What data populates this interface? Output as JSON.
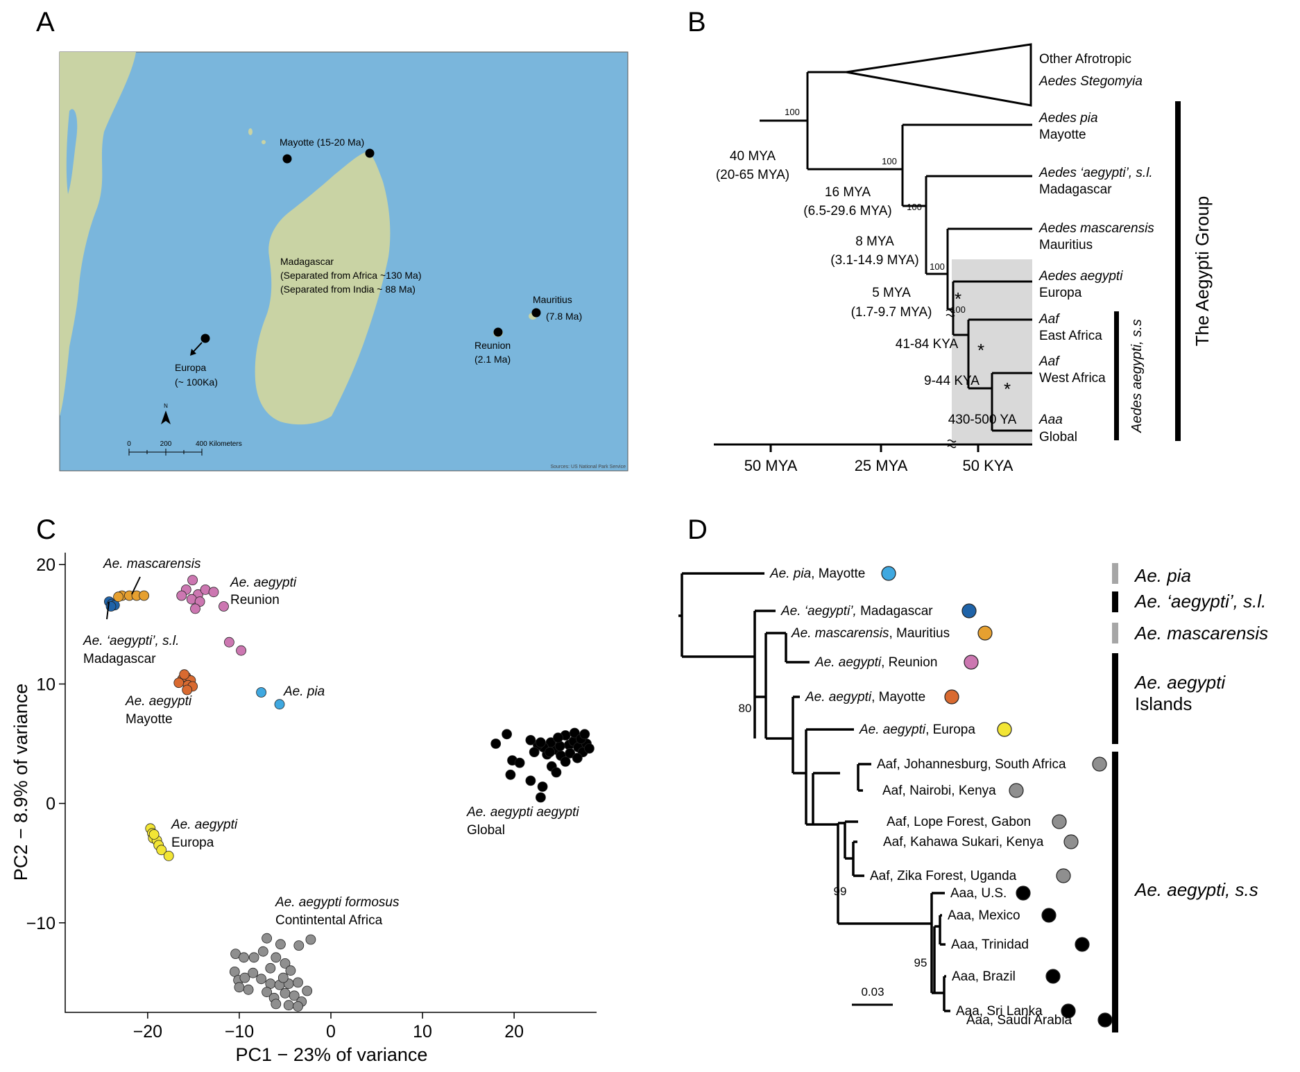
{
  "panels": {
    "a": {
      "letter": "A",
      "sites": {
        "mayotte": "Mayotte (15-20 Ma)",
        "madagascar_name": "Madagascar",
        "madagascar_line1": "(Separated from Africa ~130 Ma)",
        "madagascar_line2": "(Separated from India ~ 88 Ma)",
        "mauritius_name": "Mauritius",
        "mauritius_age": "(7.8 Ma)",
        "reunion_name": "Reunion",
        "reunion_age": "(2.1 Ma)",
        "europa_name": "Europa",
        "europa_age": "(~ 100Ka)"
      },
      "north": "N",
      "scale_ticks": [
        "0",
        "200",
        "400 Kilometers"
      ],
      "credit": "Sources: US National Park Service",
      "colors": {
        "sea": "#7ab6dc",
        "land": "#c9d3a4"
      }
    },
    "b": {
      "letter": "B",
      "tips": {
        "other1": "Other Afrotropic",
        "other2": "Aedes Stegomyia",
        "pia1": "Aedes pia",
        "pia2": "Mayotte",
        "mad1": "Aedes ‘aegypti’, s.l.",
        "mad2": "Madagascar",
        "masc1": "Aedes mascarensis",
        "masc2": "Mauritius",
        "eur1": "Aedes aegypti",
        "eur2": "Europa",
        "eaf1": "Aaf",
        "eaf2": "East Africa",
        "waf1": "Aaf",
        "waf2": "West Africa",
        "aaa1": "Aaa",
        "aaa2": "Global"
      },
      "dates": {
        "d40a": "40 MYA",
        "d40b": "(20-65 MYA)",
        "d16a": "16 MYA",
        "d16b": "(6.5-29.6 MYA)",
        "d8a": "8 MYA",
        "d8b": "(3.1-14.9 MYA)",
        "d5a": "5 MYA",
        "d5b": "(1.7-9.7 MYA)",
        "k41": "41-84 KYA",
        "k9": "9-44 KYA",
        "y430": "430-500 YA"
      },
      "support": "100",
      "star": "*",
      "axis": [
        "50 MYA",
        "25 MYA",
        "50 KYA"
      ],
      "group_label": "The Aegypti Group",
      "ss_label": "Aedes aegypti, s.s"
    },
    "c": {
      "letter": "C",
      "chart_data": {
        "type": "scatter",
        "xlabel": "PC1 − 23% of variance",
        "ylabel": "PC2 − 8.9% of variance",
        "xlim": [
          -29,
          29
        ],
        "ylim": [
          -17.5,
          21
        ],
        "xticks": [
          -20,
          -10,
          0,
          10,
          20
        ],
        "yticks": [
          -10,
          0,
          10,
          20
        ],
        "xtick_labels": [
          "−20",
          "−10",
          "0",
          "10",
          "20"
        ],
        "ytick_labels": [
          "−10",
          "0",
          "10",
          "20"
        ],
        "series": [
          {
            "color": "#1f63a8",
            "points": [
              [
                -24.2,
                16.9
              ],
              [
                -23.9,
                16.7
              ],
              [
                -23.6,
                16.6
              ],
              [
                -24.0,
                16.5
              ]
            ]
          },
          {
            "color": "#e6a030",
            "points": [
              [
                -22.8,
                17.4
              ],
              [
                -22.0,
                17.4
              ],
              [
                -21.2,
                17.4
              ],
              [
                -20.4,
                17.4
              ],
              [
                -23.2,
                17.3
              ]
            ]
          },
          {
            "color": "#cc77b1",
            "points": [
              [
                -15.1,
                18.7
              ],
              [
                -15.8,
                17.9
              ],
              [
                -14.5,
                17.5
              ],
              [
                -13.7,
                17.9
              ],
              [
                -12.8,
                17.7
              ],
              [
                -15.2,
                17.1
              ],
              [
                -14.3,
                16.9
              ],
              [
                -14.8,
                16.3
              ],
              [
                -11.7,
                16.5
              ],
              [
                -11.1,
                13.5
              ],
              [
                -9.8,
                12.8
              ],
              [
                -16.3,
                17.4
              ]
            ]
          },
          {
            "color": "#d96a30",
            "points": [
              [
                -16.2,
                10.4
              ],
              [
                -15.8,
                10.6
              ],
              [
                -15.3,
                10.3
              ],
              [
                -16.6,
                10.1
              ],
              [
                -15.6,
                9.9
              ],
              [
                -15.1,
                9.8
              ],
              [
                -15.7,
                9.5
              ],
              [
                -16.0,
                10.8
              ]
            ]
          },
          {
            "color": "#3fa8e0",
            "points": [
              [
                -7.6,
                9.3
              ],
              [
                -5.6,
                8.3
              ]
            ]
          },
          {
            "color": "#f2e535",
            "points": [
              [
                -19.7,
                -2.1
              ],
              [
                -19.5,
                -2.5
              ],
              [
                -19.4,
                -2.9
              ],
              [
                -19.0,
                -3.1
              ],
              [
                -18.8,
                -3.5
              ],
              [
                -18.5,
                -3.9
              ],
              [
                -19.3,
                -2.6
              ],
              [
                -17.7,
                -4.4
              ]
            ]
          },
          {
            "color": "#8f8f8f",
            "points": [
              [
                -10.4,
                -12.6
              ],
              [
                -9.5,
                -12.9
              ],
              [
                -8.4,
                -12.9
              ],
              [
                -7.4,
                -12.4
              ],
              [
                -6.0,
                -12.9
              ],
              [
                -5.0,
                -13.4
              ],
              [
                -7.0,
                -11.3
              ],
              [
                -5.5,
                -11.8
              ],
              [
                -3.5,
                -11.9
              ],
              [
                -2.2,
                -11.4
              ],
              [
                -10.5,
                -14.1
              ],
              [
                -10.1,
                -14.8
              ],
              [
                -9.4,
                -14.6
              ],
              [
                -8.5,
                -14.2
              ],
              [
                -7.6,
                -14.7
              ],
              [
                -6.6,
                -15.1
              ],
              [
                -5.6,
                -15.2
              ],
              [
                -4.6,
                -15.1
              ],
              [
                -3.6,
                -15.0
              ],
              [
                -2.6,
                -15.7
              ],
              [
                -10.0,
                -15.4
              ],
              [
                -9.0,
                -15.6
              ],
              [
                -7.0,
                -15.8
              ],
              [
                -6.2,
                -16.3
              ],
              [
                -5.0,
                -15.9
              ],
              [
                -4.0,
                -16.1
              ],
              [
                -3.2,
                -16.6
              ],
              [
                -6.0,
                -16.8
              ],
              [
                -4.6,
                -16.9
              ],
              [
                -3.6,
                -17.0
              ],
              [
                -5.2,
                -14.6
              ],
              [
                -4.4,
                -14.0
              ],
              [
                -6.6,
                -13.8
              ]
            ]
          },
          {
            "color": "#000000",
            "points": [
              [
                18.0,
                5.0
              ],
              [
                19.2,
                5.8
              ],
              [
                19.8,
                3.6
              ],
              [
                20.6,
                3.4
              ],
              [
                19.6,
                2.4
              ],
              [
                21.8,
                1.9
              ],
              [
                23.1,
                1.4
              ],
              [
                22.9,
                0.5
              ],
              [
                24.1,
                3.1
              ],
              [
                24.6,
                2.6
              ],
              [
                23.6,
                4.1
              ],
              [
                24.6,
                4.5
              ],
              [
                25.1,
                4.0
              ],
              [
                26.0,
                4.9
              ],
              [
                26.5,
                5.2
              ],
              [
                27.0,
                4.7
              ],
              [
                27.5,
                4.3
              ],
              [
                27.9,
                5.0
              ],
              [
                28.2,
                4.6
              ],
              [
                25.6,
                5.7
              ],
              [
                26.6,
                5.9
              ],
              [
                27.3,
                5.4
              ],
              [
                25.0,
                4.8
              ],
              [
                24.0,
                5.1
              ],
              [
                23.2,
                4.7
              ],
              [
                22.6,
                4.9
              ],
              [
                21.8,
                5.3
              ],
              [
                22.2,
                4.3
              ],
              [
                26.1,
                4.2
              ],
              [
                27.7,
                5.8
              ],
              [
                26.9,
                3.8
              ],
              [
                25.6,
                3.5
              ],
              [
                24.8,
                5.5
              ],
              [
                23.9,
                4.3
              ],
              [
                22.9,
                5.1
              ]
            ]
          }
        ]
      },
      "group_labels": {
        "masc": "Ae. mascarensis",
        "mad1": "Ae. ‘aegypti’, s.l.",
        "mad2": "Madagascar",
        "reu1": "Ae. aegypti",
        "reu2": "Reunion",
        "may1": "Ae. aegypti",
        "may2": "Mayotte",
        "pia": "Ae. pia",
        "eur1": "Ae. aegypti",
        "eur2": "Europa",
        "aaa1": "Ae. aegypti aegypti",
        "aaa2": "Global",
        "aaf1": "Ae. aegypti formosus",
        "aaf2": "Contintental Africa"
      }
    },
    "d": {
      "letter": "D",
      "leaves": [
        {
          "it": "Ae. pia",
          "rest": ", Mayotte",
          "color": "#3fa8e0"
        },
        {
          "it": "Ae. ‘aegypti’,",
          "rest": " Madagascar",
          "color": "#1f63a8"
        },
        {
          "it": "Ae. mascarensis",
          "rest": ", Mauritius",
          "color": "#e6a030"
        },
        {
          "it": "Ae. aegypti",
          "rest": ", Reunion",
          "color": "#cc77b1"
        },
        {
          "it": "Ae. aegypti",
          "rest": ", Mayotte",
          "color": "#d96a30"
        },
        {
          "it": "Ae. aegypti",
          "rest": ", Europa",
          "color": "#f2e535"
        },
        {
          "it": "",
          "rest": "Aaf, Johannesburg, South Africa",
          "color": "#8f8f8f"
        },
        {
          "it": "",
          "rest": "Aaf, Nairobi, Kenya",
          "color": "#8f8f8f"
        },
        {
          "it": "",
          "rest": "Aaf, Lope Forest, Gabon",
          "color": "#8f8f8f"
        },
        {
          "it": "",
          "rest": "Aaf, Kahawa Sukari, Kenya",
          "color": "#8f8f8f"
        },
        {
          "it": "",
          "rest": "Aaf, Zika Forest, Uganda",
          "color": "#8f8f8f"
        },
        {
          "it": "",
          "rest": "Aaa, U.S.",
          "color": "#000000"
        },
        {
          "it": "",
          "rest": "Aaa, Mexico",
          "color": "#000000"
        },
        {
          "it": "",
          "rest": "Aaa, Trinidad",
          "color": "#000000"
        },
        {
          "it": "",
          "rest": "Aaa, Brazil",
          "color": "#000000"
        },
        {
          "it": "",
          "rest": "Aaa, Sri Lanka",
          "color": "#000000"
        },
        {
          "it": "",
          "rest": "Aaa, Saudi Arabia",
          "color": "#000000"
        }
      ],
      "support": [
        "80",
        "99",
        "95"
      ],
      "scale": "0.03",
      "clades": {
        "pia": "Ae. pia",
        "mad": "Ae. ‘aegypti’, s.l.",
        "masc": "Ae. mascarensis",
        "isl1": "Ae. aegypti",
        "isl2": "Islands",
        "ss": "Ae. aegypti, s.s"
      }
    }
  }
}
